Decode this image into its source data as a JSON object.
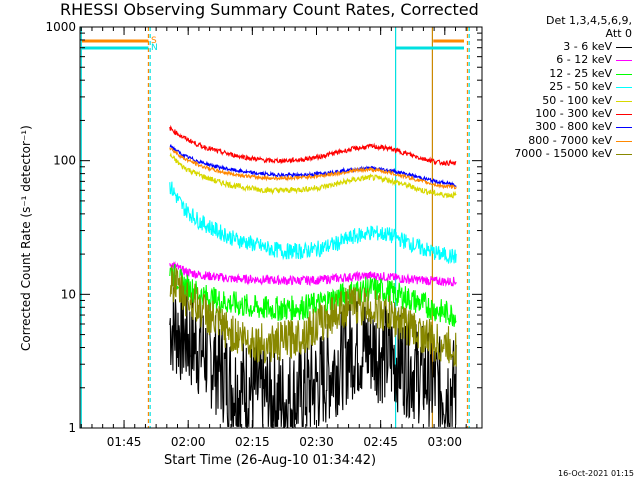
{
  "chart_data": {
    "type": "line",
    "title": "RHESSI Observing Summary Count Rates, Corrected",
    "xlabel": "Start Time (26-Aug-10 01:34:42)",
    "ylabel": "Corrected Count Rate (s⁻¹ detector⁻¹)",
    "yscale": "log",
    "ylim": [
      1,
      1000
    ],
    "xlim_minutes": [
      0,
      94
    ],
    "x_ticks": [
      "01:45",
      "02:00",
      "02:15",
      "02:30",
      "02:45",
      "03:00"
    ],
    "y_ticks": [
      "1",
      "10",
      "100",
      "1000"
    ],
    "legend_header": [
      "Det 1,3,4,5,6,9,",
      "Att 0"
    ],
    "markers": [
      {
        "label": "S",
        "color": "#ff8800"
      },
      {
        "label": "N",
        "color": "#00e0e0"
      }
    ],
    "series": [
      {
        "name": "3 - 6 keV",
        "color": "#000000",
        "x": [
          21,
          24,
          28,
          32,
          36,
          40,
          44,
          48,
          52,
          56,
          60,
          64,
          68,
          72,
          76,
          80,
          84,
          88
        ],
        "y": [
          6,
          5,
          4,
          3,
          2,
          2,
          1.7,
          1.6,
          1.8,
          2.2,
          3,
          4,
          4,
          3.5,
          3,
          2.5,
          2,
          2
        ]
      },
      {
        "name": "6 - 12 keV",
        "color": "#ff00ff",
        "x": [
          21,
          24,
          28,
          32,
          36,
          40,
          44,
          48,
          52,
          56,
          60,
          64,
          68,
          72,
          76,
          80,
          84,
          88
        ],
        "y": [
          17,
          15,
          14,
          13.5,
          13,
          13,
          12.8,
          12.7,
          12.7,
          12.8,
          13.2,
          13.5,
          13.8,
          13.5,
          13,
          12.8,
          12.5,
          12.5
        ]
      },
      {
        "name": "12 - 25 keV",
        "color": "#00ff00",
        "x": [
          21,
          24,
          28,
          32,
          36,
          40,
          44,
          48,
          52,
          56,
          60,
          64,
          68,
          72,
          76,
          80,
          84,
          88
        ],
        "y": [
          15,
          12,
          10,
          9,
          8.5,
          8,
          7.8,
          7.8,
          8,
          8.5,
          9.5,
          10.5,
          11,
          10.5,
          9.5,
          8.5,
          7.5,
          7
        ]
      },
      {
        "name": "25 - 50 keV",
        "color": "#00ffff",
        "x": [
          21,
          24,
          28,
          32,
          36,
          40,
          44,
          48,
          52,
          56,
          60,
          64,
          68,
          72,
          76,
          80,
          84,
          88
        ],
        "y": [
          65,
          45,
          35,
          30,
          26,
          24,
          22,
          21,
          21,
          22,
          24,
          27,
          29,
          28,
          25,
          22,
          20,
          19
        ]
      },
      {
        "name": "50 - 100 keV",
        "color": "#d8d800",
        "x": [
          21,
          24,
          28,
          32,
          36,
          40,
          44,
          48,
          52,
          56,
          60,
          64,
          68,
          72,
          76,
          80,
          84,
          88
        ],
        "y": [
          110,
          90,
          78,
          70,
          65,
          62,
          60,
          60,
          61,
          63,
          67,
          72,
          75,
          72,
          66,
          60,
          56,
          55
        ]
      },
      {
        "name": "100 - 300 keV",
        "color": "#ff0000",
        "x": [
          21,
          24,
          28,
          32,
          36,
          40,
          44,
          48,
          52,
          56,
          60,
          64,
          68,
          72,
          76,
          80,
          84,
          88
        ],
        "y": [
          175,
          150,
          130,
          118,
          110,
          104,
          100,
          100,
          102,
          107,
          115,
          123,
          128,
          124,
          114,
          104,
          97,
          95
        ]
      },
      {
        "name": "300 - 800 keV",
        "color": "#0000ff",
        "x": [
          21,
          24,
          28,
          32,
          36,
          40,
          44,
          48,
          52,
          56,
          60,
          64,
          68,
          72,
          76,
          80,
          84,
          88
        ],
        "y": [
          130,
          110,
          98,
          90,
          85,
          81,
          79,
          78,
          78,
          80,
          83,
          86,
          88,
          85,
          80,
          74,
          69,
          66
        ]
      },
      {
        "name": "800 - 7000 keV",
        "color": "#ff8800",
        "x": [
          21,
          24,
          28,
          32,
          36,
          40,
          44,
          48,
          52,
          56,
          60,
          64,
          68,
          72,
          76,
          80,
          84,
          88
        ],
        "y": [
          125,
          105,
          92,
          84,
          79,
          76,
          74,
          74,
          75,
          77,
          80,
          84,
          86,
          82,
          76,
          70,
          65,
          63
        ]
      },
      {
        "name": "7000 - 15000 keV",
        "color": "#888800",
        "x": [
          21,
          24,
          28,
          32,
          36,
          40,
          44,
          48,
          52,
          56,
          60,
          64,
          68,
          72,
          76,
          80,
          84,
          88
        ],
        "y": [
          13,
          10,
          8,
          6,
          5,
          4.5,
          4.2,
          4.5,
          5,
          6,
          7.5,
          8.5,
          8,
          7,
          6,
          5,
          4.2,
          4
        ]
      }
    ]
  },
  "timestamp": "16-Oct-2021 01:15"
}
